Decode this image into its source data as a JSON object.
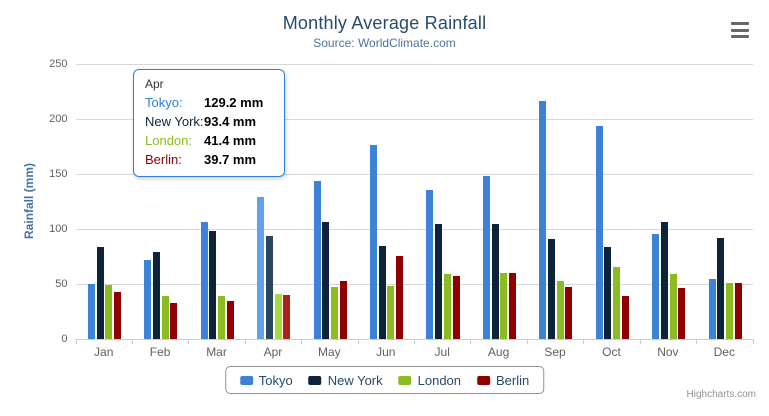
{
  "header": {
    "title": "Monthly Average Rainfall",
    "subtitle": "Source: WorldClimate.com",
    "menu_icon": "hamburger-icon"
  },
  "credit": "Highcharts.com",
  "chart_data": {
    "type": "bar",
    "title": "Monthly Average Rainfall",
    "subtitle": "Source: WorldClimate.com",
    "xlabel": "",
    "ylabel": "Rainfall (mm)",
    "ylim": [
      0,
      250
    ],
    "y_ticks": [
      0,
      50,
      100,
      150,
      200,
      250
    ],
    "grid": true,
    "legend_position": "bottom",
    "categories": [
      "Jan",
      "Feb",
      "Mar",
      "Apr",
      "May",
      "Jun",
      "Jul",
      "Aug",
      "Sep",
      "Oct",
      "Nov",
      "Dec"
    ],
    "highlighted_category": "Apr",
    "highlighted_index": 3,
    "series": [
      {
        "name": "Tokyo",
        "color": "#3c83d8",
        "hover_color": "#64a2e6",
        "values": [
          49.9,
          71.5,
          106.4,
          129.2,
          144.0,
          176.0,
          135.6,
          148.5,
          216.4,
          194.1,
          95.6,
          54.4
        ]
      },
      {
        "name": "New York",
        "color": "#0d233a",
        "hover_color": "#29455f",
        "values": [
          83.6,
          78.8,
          98.5,
          93.4,
          106.0,
          84.5,
          105.0,
          104.3,
          91.2,
          83.5,
          106.6,
          92.3
        ]
      },
      {
        "name": "London",
        "color": "#8bbc21",
        "hover_color": "#a9d840",
        "values": [
          48.9,
          38.8,
          39.3,
          41.4,
          47.0,
          48.3,
          59.0,
          59.6,
          52.4,
          65.2,
          59.3,
          51.2
        ]
      },
      {
        "name": "Berlin",
        "color": "#910000",
        "hover_color": "#b02015",
        "values": [
          42.4,
          33.2,
          34.5,
          39.7,
          52.6,
          75.5,
          57.4,
          60.4,
          47.6,
          39.1,
          46.8,
          51.1
        ]
      }
    ]
  },
  "tooltip": {
    "header": "Apr",
    "border_color": "#2f7ed8",
    "rows": [
      {
        "label": "Tokyo:",
        "value": "129.2 mm",
        "color": "#2f7ed8"
      },
      {
        "label": "New York:",
        "value": "93.4 mm",
        "color": "#0d233a"
      },
      {
        "label": "London:",
        "value": "41.4 mm",
        "color": "#8bbc21"
      },
      {
        "label": "Berlin:",
        "value": "39.7 mm",
        "color": "#910000"
      }
    ]
  }
}
